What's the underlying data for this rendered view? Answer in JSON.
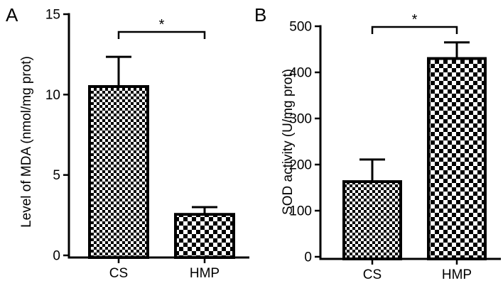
{
  "chart_data": [
    {
      "type": "bar",
      "panel_label": "A",
      "categories": [
        "CS",
        "HMP"
      ],
      "values": [
        10.5,
        2.55
      ],
      "errors": [
        1.85,
        0.45
      ],
      "bar_patterns": [
        "fine-checker",
        "coarse-checker"
      ],
      "ylabel": "Level of MDA (nmol/mg prot)",
      "ylim": [
        0,
        15
      ],
      "yticks": [
        0,
        5,
        10,
        15
      ],
      "ytick_labels": [
        "0",
        "5",
        "10",
        "15"
      ],
      "significance": {
        "from": 0,
        "to": 1,
        "label": "*"
      },
      "grid": false,
      "legend": "none"
    },
    {
      "type": "bar",
      "panel_label": "B",
      "categories": [
        "CS",
        "HMP"
      ],
      "values": [
        163,
        430
      ],
      "errors": [
        48,
        35
      ],
      "bar_patterns": [
        "fine-checker",
        "coarse-checker"
      ],
      "ylabel": "SOD activity (U/mg prot)",
      "ylim": [
        0,
        500
      ],
      "yticks": [
        0,
        100,
        200,
        300,
        400,
        500
      ],
      "ytick_labels": [
        "0",
        "100",
        "200",
        "300",
        "400",
        "500"
      ],
      "significance": {
        "from": 0,
        "to": 1,
        "label": "*"
      },
      "grid": false,
      "legend": "none"
    }
  ],
  "colors": {
    "ink": "#000000",
    "background": "#ffffff"
  }
}
